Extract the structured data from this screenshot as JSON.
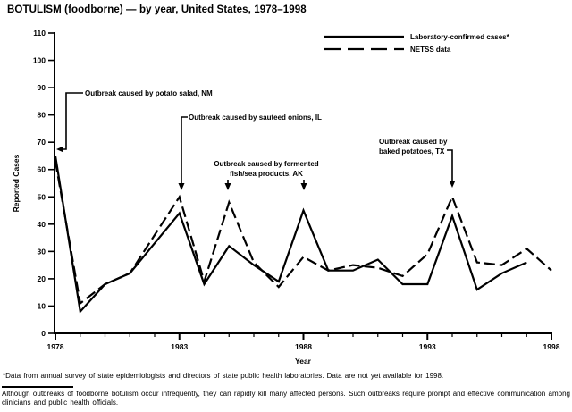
{
  "title": "BOTULISM (foodborne) — by year, United States, 1978–1998",
  "chart_data": {
    "type": "line",
    "xlabel": "Year",
    "ylabel": "Reported Cases",
    "ylim": [
      0,
      110
    ],
    "yticks": [
      0,
      10,
      20,
      30,
      40,
      50,
      60,
      70,
      80,
      90,
      100,
      110
    ],
    "x": [
      1978,
      1979,
      1980,
      1981,
      1982,
      1983,
      1984,
      1985,
      1986,
      1987,
      1988,
      1989,
      1990,
      1991,
      1992,
      1993,
      1994,
      1995,
      1996,
      1997,
      1998
    ],
    "xtick_labels": [
      1978,
      1983,
      1988,
      1993,
      1998
    ],
    "series": [
      {
        "name": "Laboratory-confirmed cases*",
        "line_style": "solid",
        "values": [
          65,
          8,
          18,
          22,
          33,
          44,
          18,
          32,
          25,
          19,
          45,
          23,
          23,
          27,
          18,
          18,
          43,
          16,
          22,
          26,
          null
        ]
      },
      {
        "name": "NETSS data",
        "line_style": "dashed",
        "values": [
          63,
          11,
          18,
          22,
          36,
          50,
          19,
          48,
          26,
          17,
          28,
          23,
          25,
          24,
          21,
          29,
          50,
          26,
          25,
          31,
          23
        ]
      }
    ],
    "legend": [
      {
        "label": "Laboratory-confirmed cases*",
        "line_style": "solid"
      },
      {
        "label": "NETSS data",
        "line_style": "dashed"
      }
    ],
    "legend_position": "top-right",
    "grid": false,
    "annotations": [
      {
        "lines": [
          "Outbreak caused by potato salad, NM"
        ],
        "points_to_year": "1978"
      },
      {
        "lines": [
          "Outbreak caused by sauteed onions, IL"
        ],
        "points_to_year": "1983"
      },
      {
        "lines": [
          "Outbreak caused by fermented",
          "fish/sea products, AK"
        ],
        "points_to_year": "1985, 1988"
      },
      {
        "lines": [
          "Outbreak caused by",
          "baked potatoes, TX"
        ],
        "points_to_year": "1994"
      }
    ]
  },
  "footnotes": {
    "note1": "*Data from annual survey of state epidemiologists and directors of state public health laboratories. Data are not yet available for 1998.",
    "note2": "Although outbreaks of foodborne botulism occur infrequently, they can rapidly kill many affected persons. Such outbreaks require prompt and effective communication among clinicians and public health officials."
  },
  "colors": {
    "foreground": "#000000",
    "background": "#ffffff"
  }
}
